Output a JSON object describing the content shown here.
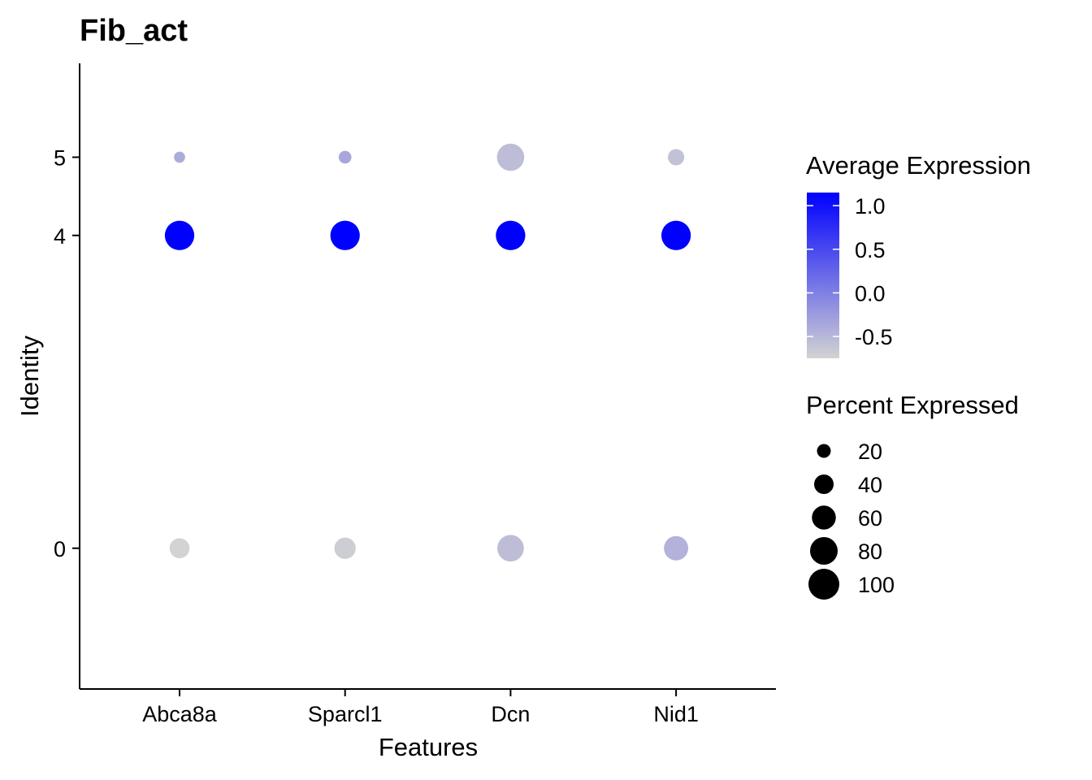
{
  "chart_data": {
    "type": "dot",
    "title": "Fib_act",
    "xlabel": "Features",
    "ylabel": "Identity",
    "features": [
      "Abca8a",
      "Sparcl1",
      "Dcn",
      "Nid1"
    ],
    "identities": [
      "0",
      "4",
      "5"
    ],
    "identity_positions": [
      0,
      4,
      5
    ],
    "ylim": [
      -1.8,
      6.2
    ],
    "points": [
      {
        "feature": "Abca8a",
        "identity": "5",
        "avg_exp": -0.4,
        "pct_exp": 13
      },
      {
        "feature": "Sparcl1",
        "identity": "5",
        "avg_exp": -0.35,
        "pct_exp": 17
      },
      {
        "feature": "Dcn",
        "identity": "5",
        "avg_exp": -0.55,
        "pct_exp": 78
      },
      {
        "feature": "Nid1",
        "identity": "5",
        "avg_exp": -0.6,
        "pct_exp": 28
      },
      {
        "feature": "Abca8a",
        "identity": "4",
        "avg_exp": 1.15,
        "pct_exp": 91
      },
      {
        "feature": "Sparcl1",
        "identity": "4",
        "avg_exp": 1.15,
        "pct_exp": 91
      },
      {
        "feature": "Dcn",
        "identity": "4",
        "avg_exp": 1.15,
        "pct_exp": 91
      },
      {
        "feature": "Nid1",
        "identity": "4",
        "avg_exp": 1.15,
        "pct_exp": 91
      },
      {
        "feature": "Abca8a",
        "identity": "0",
        "avg_exp": -0.75,
        "pct_exp": 42
      },
      {
        "feature": "Sparcl1",
        "identity": "0",
        "avg_exp": -0.7,
        "pct_exp": 48
      },
      {
        "feature": "Dcn",
        "identity": "0",
        "avg_exp": -0.55,
        "pct_exp": 74
      },
      {
        "feature": "Nid1",
        "identity": "0",
        "avg_exp": -0.45,
        "pct_exp": 62
      }
    ],
    "color_legend": {
      "title": "Average Expression",
      "min": -0.75,
      "max": 1.15,
      "low_color": "#d3d3d3",
      "high_color": "#0000ff",
      "ticks": [
        1.0,
        0.5,
        0.0,
        -0.5
      ],
      "tick_labels": [
        "1.0",
        "0.5",
        "0.0",
        "-0.5"
      ]
    },
    "size_legend": {
      "title": "Percent Expressed",
      "values": [
        20,
        40,
        60,
        80,
        100
      ],
      "labels": [
        "20",
        "40",
        "60",
        "80",
        "100"
      ],
      "color": "#000000"
    },
    "grid": false,
    "legend_position": "right"
  }
}
